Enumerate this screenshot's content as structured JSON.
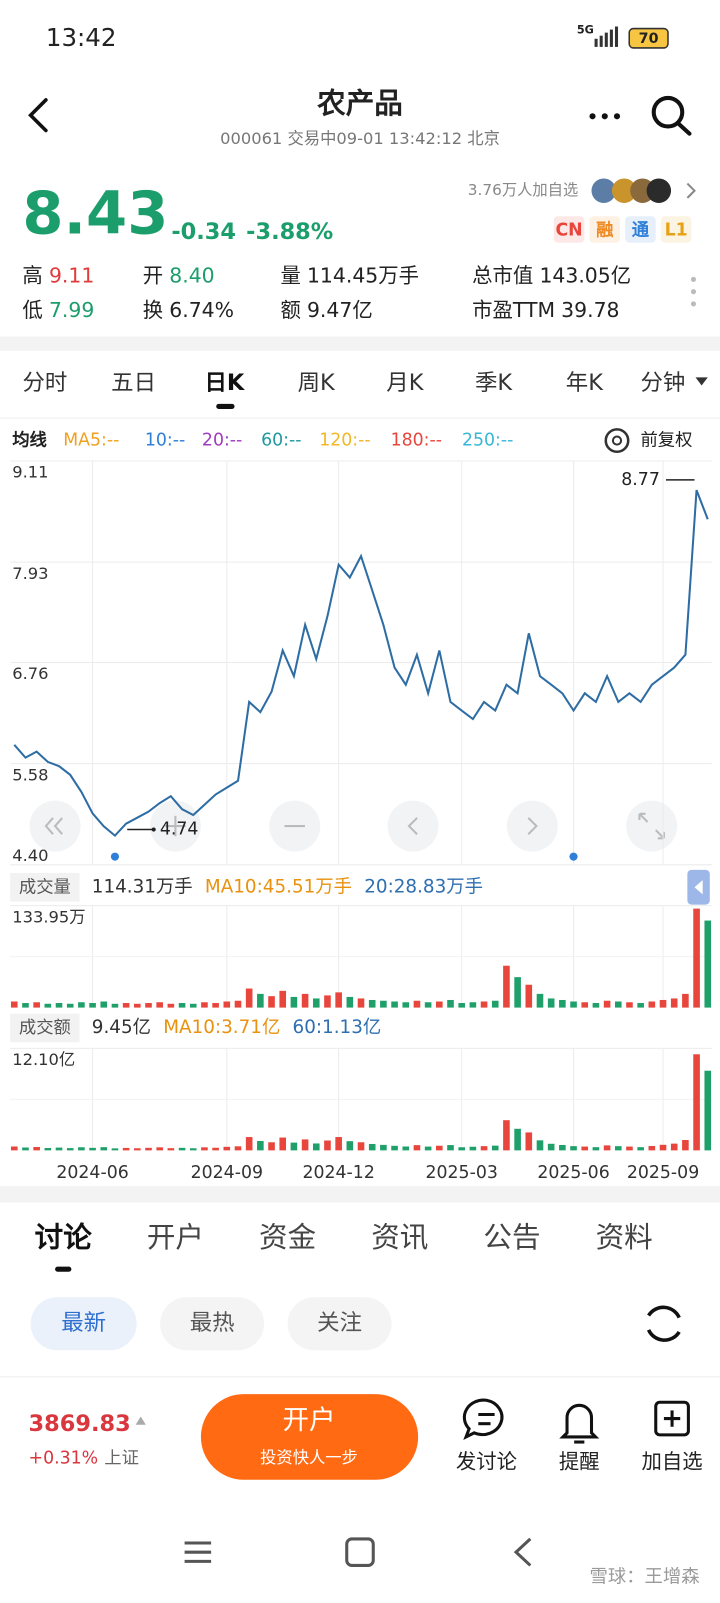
{
  "status_bar": {
    "time": "13:42",
    "network": "5G",
    "battery": "70"
  },
  "header": {
    "title": "农产品",
    "subtitle": "000061 交易中09-01 13:42:12 北京"
  },
  "quote": {
    "price": "8.43",
    "change": "-0.34",
    "change_percent": "-3.88%",
    "followers": "3.76万人加自选",
    "badges": [
      "CN",
      "融",
      "通",
      "L1"
    ]
  },
  "stats": [
    {
      "label": "高",
      "value": "9.11"
    },
    {
      "label": "开",
      "value": "8.40"
    },
    {
      "label": "量",
      "value": "114.45万手"
    },
    {
      "label": "总市值",
      "value": "143.05亿"
    },
    {
      "label": "低",
      "value": "7.99"
    },
    {
      "label": "换",
      "value": "6.74%"
    },
    {
      "label": "额",
      "value": "9.47亿"
    },
    {
      "label": "市盈TTM",
      "value": "39.78"
    }
  ],
  "period_tabs": [
    "分时",
    "五日",
    "日K",
    "周K",
    "月K",
    "季K",
    "年K",
    "分钟"
  ],
  "ma_legend": {
    "title": "均线",
    "items": [
      "MA5:--",
      "10:--",
      "20:--",
      "60:--",
      "120:--",
      "180:--",
      "250:--"
    ],
    "adjust": "前复权"
  },
  "chart_data": [
    {
      "type": "line",
      "color": "#2e6da4",
      "values": [
        5.8,
        5.65,
        5.72,
        5.6,
        5.55,
        5.45,
        5.25,
        5.0,
        4.85,
        4.74,
        4.88,
        4.95,
        5.02,
        5.12,
        5.2,
        5.05,
        4.98,
        5.1,
        5.22,
        5.3,
        5.38,
        6.3,
        6.18,
        6.42,
        6.9,
        6.6,
        7.2,
        6.8,
        7.3,
        7.9,
        7.75,
        8.0,
        7.6,
        7.2,
        6.7,
        6.5,
        6.85,
        6.4,
        6.9,
        6.3,
        6.2,
        6.1,
        6.3,
        6.2,
        6.5,
        6.4,
        7.1,
        6.6,
        6.5,
        6.4,
        6.2,
        6.4,
        6.3,
        6.6,
        6.3,
        6.4,
        6.3,
        6.5,
        6.6,
        6.7,
        6.85,
        8.77,
        8.43
      ],
      "xlim": [
        0,
        62
      ],
      "xticks": [
        {
          "value": 7,
          "label": "2024-06"
        },
        {
          "value": 19,
          "label": "2024-09"
        },
        {
          "value": 29,
          "label": "2024-12"
        },
        {
          "value": 40,
          "label": "2025-03"
        },
        {
          "value": 50,
          "label": "2025-06"
        },
        {
          "value": 58,
          "label": "2025-09"
        }
      ],
      "ylim": [
        4.4,
        9.11
      ],
      "yticks": [
        9.11,
        7.93,
        6.76,
        5.58,
        {
          "value": 4.4,
          "label": "4.40"
        }
      ],
      "annotations": [
        "8.77",
        "4.74"
      ],
      "grid": true
    },
    {
      "type": "bar",
      "title": "成交量",
      "info": [
        "114.31万手",
        "MA10:45.51万手",
        "20:28.83万手"
      ],
      "values": [
        8,
        6,
        7,
        5,
        6,
        5,
        7,
        6,
        8,
        5,
        6,
        5,
        6,
        7,
        5,
        6,
        5,
        7,
        6,
        8,
        9,
        25,
        18,
        15,
        22,
        14,
        18,
        12,
        16,
        20,
        14,
        12,
        10,
        9,
        8,
        7,
        9,
        7,
        8,
        10,
        6,
        7,
        8,
        9,
        55,
        40,
        30,
        18,
        12,
        10,
        8,
        7,
        6,
        9,
        8,
        7,
        6,
        8,
        10,
        12,
        18,
        130,
        114.31
      ],
      "ylim": [
        0,
        133.95
      ],
      "yticks": [
        {
          "value": 133.95,
          "label": "133.95万"
        }
      ],
      "colors": {
        "up": "#e8453c",
        "down": "#1fa06a"
      }
    },
    {
      "type": "bar",
      "title": "成交额",
      "info": [
        "9.45亿",
        "MA10:3.71亿",
        "60:1.13亿"
      ],
      "values": [
        0.46,
        0.34,
        0.4,
        0.28,
        0.33,
        0.27,
        0.37,
        0.3,
        0.38,
        0.24,
        0.29,
        0.25,
        0.3,
        0.36,
        0.26,
        0.3,
        0.25,
        0.36,
        0.31,
        0.42,
        0.48,
        1.58,
        1.11,
        0.96,
        1.52,
        0.92,
        1.3,
        0.82,
        1.17,
        1.58,
        1.09,
        0.96,
        0.76,
        0.65,
        0.54,
        0.46,
        0.62,
        0.45,
        0.55,
        0.63,
        0.37,
        0.43,
        0.5,
        0.56,
        3.58,
        2.56,
        2.13,
        1.19,
        0.78,
        0.64,
        0.5,
        0.45,
        0.38,
        0.59,
        0.5,
        0.45,
        0.38,
        0.52,
        0.66,
        0.8,
        1.23,
        11.4,
        9.45
      ],
      "ylim": [
        0,
        12.1
      ],
      "yticks": [
        {
          "value": 12.1,
          "label": "12.10亿"
        }
      ],
      "colors": {
        "up": "#e8453c",
        "down": "#1fa06a"
      }
    }
  ],
  "discussion_tabs": [
    "讨论",
    "开户",
    "资金",
    "资讯",
    "公告",
    "资料"
  ],
  "filters": [
    "最新",
    "最热",
    "关注"
  ],
  "footer": {
    "index_value": "3869.83",
    "index_change": "+0.31%",
    "index_name": "上证",
    "open_account": "开户",
    "slogan": "投资快人一步",
    "actions": [
      "发讨论",
      "提醒",
      "加自选"
    ]
  },
  "watermark": "雪球：王增森"
}
